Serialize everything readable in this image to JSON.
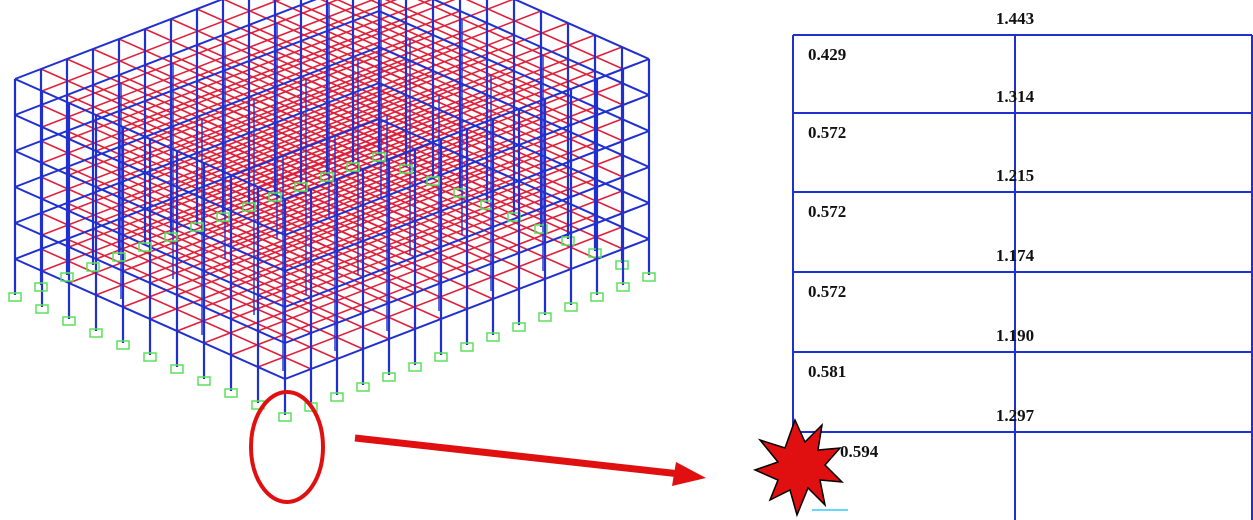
{
  "frame": {
    "stories": [
      {
        "beam": "1.443",
        "column": "0.429"
      },
      {
        "beam": "1.314",
        "column": "0.572"
      },
      {
        "beam": "1.215",
        "column": "0.572"
      },
      {
        "beam": "1.174",
        "column": "0.572"
      },
      {
        "beam": "1.190",
        "column": "0.581"
      },
      {
        "beam": "1.297",
        "column": "0.594"
      }
    ]
  }
}
